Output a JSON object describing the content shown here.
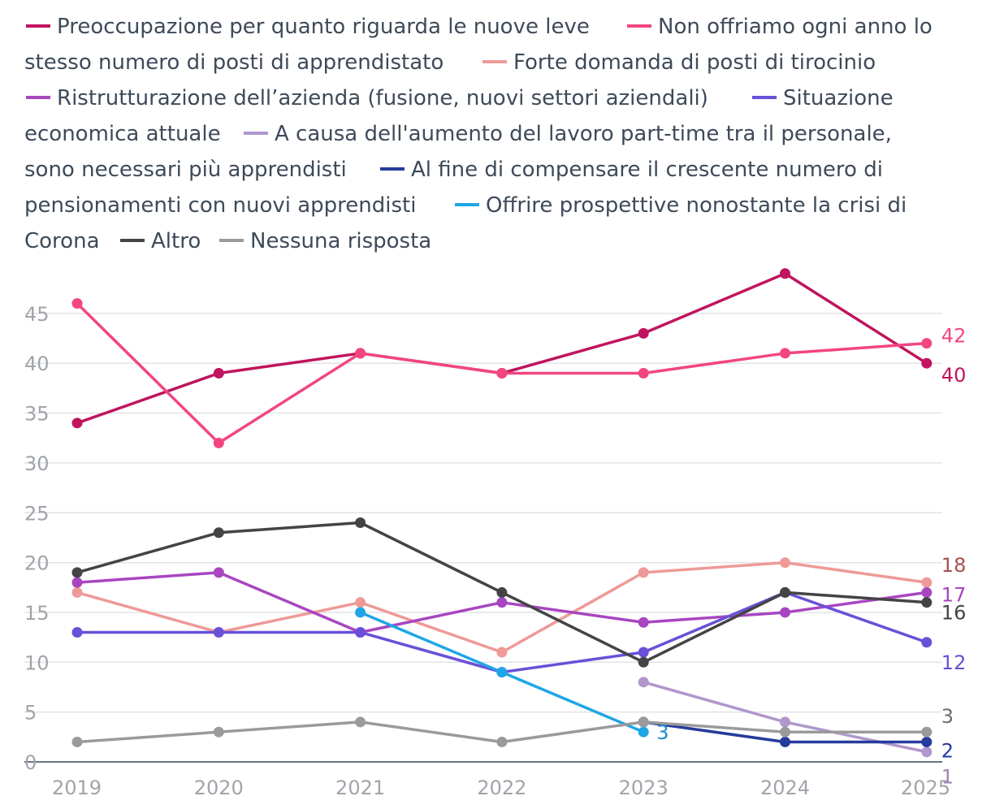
{
  "chart_data": {
    "type": "line",
    "title": "",
    "xlabel": "",
    "ylabel": "",
    "x": [
      "2019",
      "2020",
      "2021",
      "2022",
      "2023",
      "2024",
      "2025"
    ],
    "yticks": [
      "0",
      "5",
      "10",
      "15",
      "20",
      "25",
      "30",
      "35",
      "40",
      "45"
    ],
    "ylim": [
      0,
      48
    ],
    "grid": true,
    "legend_position": "top",
    "series": [
      {
        "key": "leve",
        "name": "Preoccupazione per quanto riguarda le nuove leve",
        "color": "#c0145e",
        "values": [
          34,
          39,
          41,
          39,
          43,
          49,
          40
        ],
        "end_label": "40",
        "end_label_color": "#c0145e"
      },
      {
        "key": "posti",
        "name": "Non offriamo ogni anno lo stesso numero di posti di apprendistato",
        "color": "#f24681",
        "values": [
          46,
          32,
          41,
          39,
          39,
          41,
          42
        ],
        "end_label": "42",
        "end_label_color": "#f24681"
      },
      {
        "key": "tirocinio",
        "name": "Forte domanda di posti di tirocinio",
        "color": "#ee9a98",
        "values": [
          17,
          13,
          16,
          11,
          19,
          20,
          18
        ],
        "end_label": "18",
        "end_label_color": "#a8504e"
      },
      {
        "key": "ristrutturazione",
        "name": "Ristrutturazione dell’azienda (fusione, nuovi settori aziendali)",
        "color": "#a846c0",
        "values": [
          18,
          19,
          13,
          16,
          14,
          15,
          17
        ],
        "end_label": "17",
        "end_label_color": "#a846c0"
      },
      {
        "key": "economica",
        "name": "Situazione economica attuale",
        "color": "#6a50d8",
        "values": [
          13,
          13,
          13,
          9,
          11,
          17,
          12
        ],
        "end_label": "12",
        "end_label_color": "#6a50d8"
      },
      {
        "key": "parttime",
        "name": "A causa dell'aumento del lavoro part-time tra il personale, sono necessari più apprendisti",
        "color": "#b097cc",
        "values": [
          null,
          null,
          null,
          null,
          8,
          4,
          1
        ],
        "end_label": "1",
        "end_label_color": "#9a86b2"
      },
      {
        "key": "pensionamenti",
        "name": "Al fine di compensare il crescente numero di pensionamenti con nuovi apprendisti",
        "color": "#263b9c",
        "values": [
          null,
          null,
          null,
          null,
          4,
          2,
          2
        ],
        "end_label": "2",
        "end_label_color": "#263b9c"
      },
      {
        "key": "corona",
        "name": "Offrire prospettive nonostante la crisi di Corona",
        "color": "#1fa6e6",
        "values": [
          null,
          null,
          15,
          9,
          3,
          null,
          null
        ],
        "end_label": "3",
        "end_label_color": "#1a8cc8"
      },
      {
        "key": "altro",
        "name": "Altro",
        "color": "#444446",
        "values": [
          19,
          23,
          24,
          17,
          10,
          17,
          16
        ],
        "end_label": "16",
        "end_label_color": "#444446"
      },
      {
        "key": "nessuna",
        "name": "Nessuna risposta",
        "color": "#9a9a9c",
        "values": [
          2,
          3,
          4,
          2,
          4,
          3,
          3
        ],
        "end_label": "3",
        "end_label_color": "#6e6e70"
      }
    ]
  }
}
